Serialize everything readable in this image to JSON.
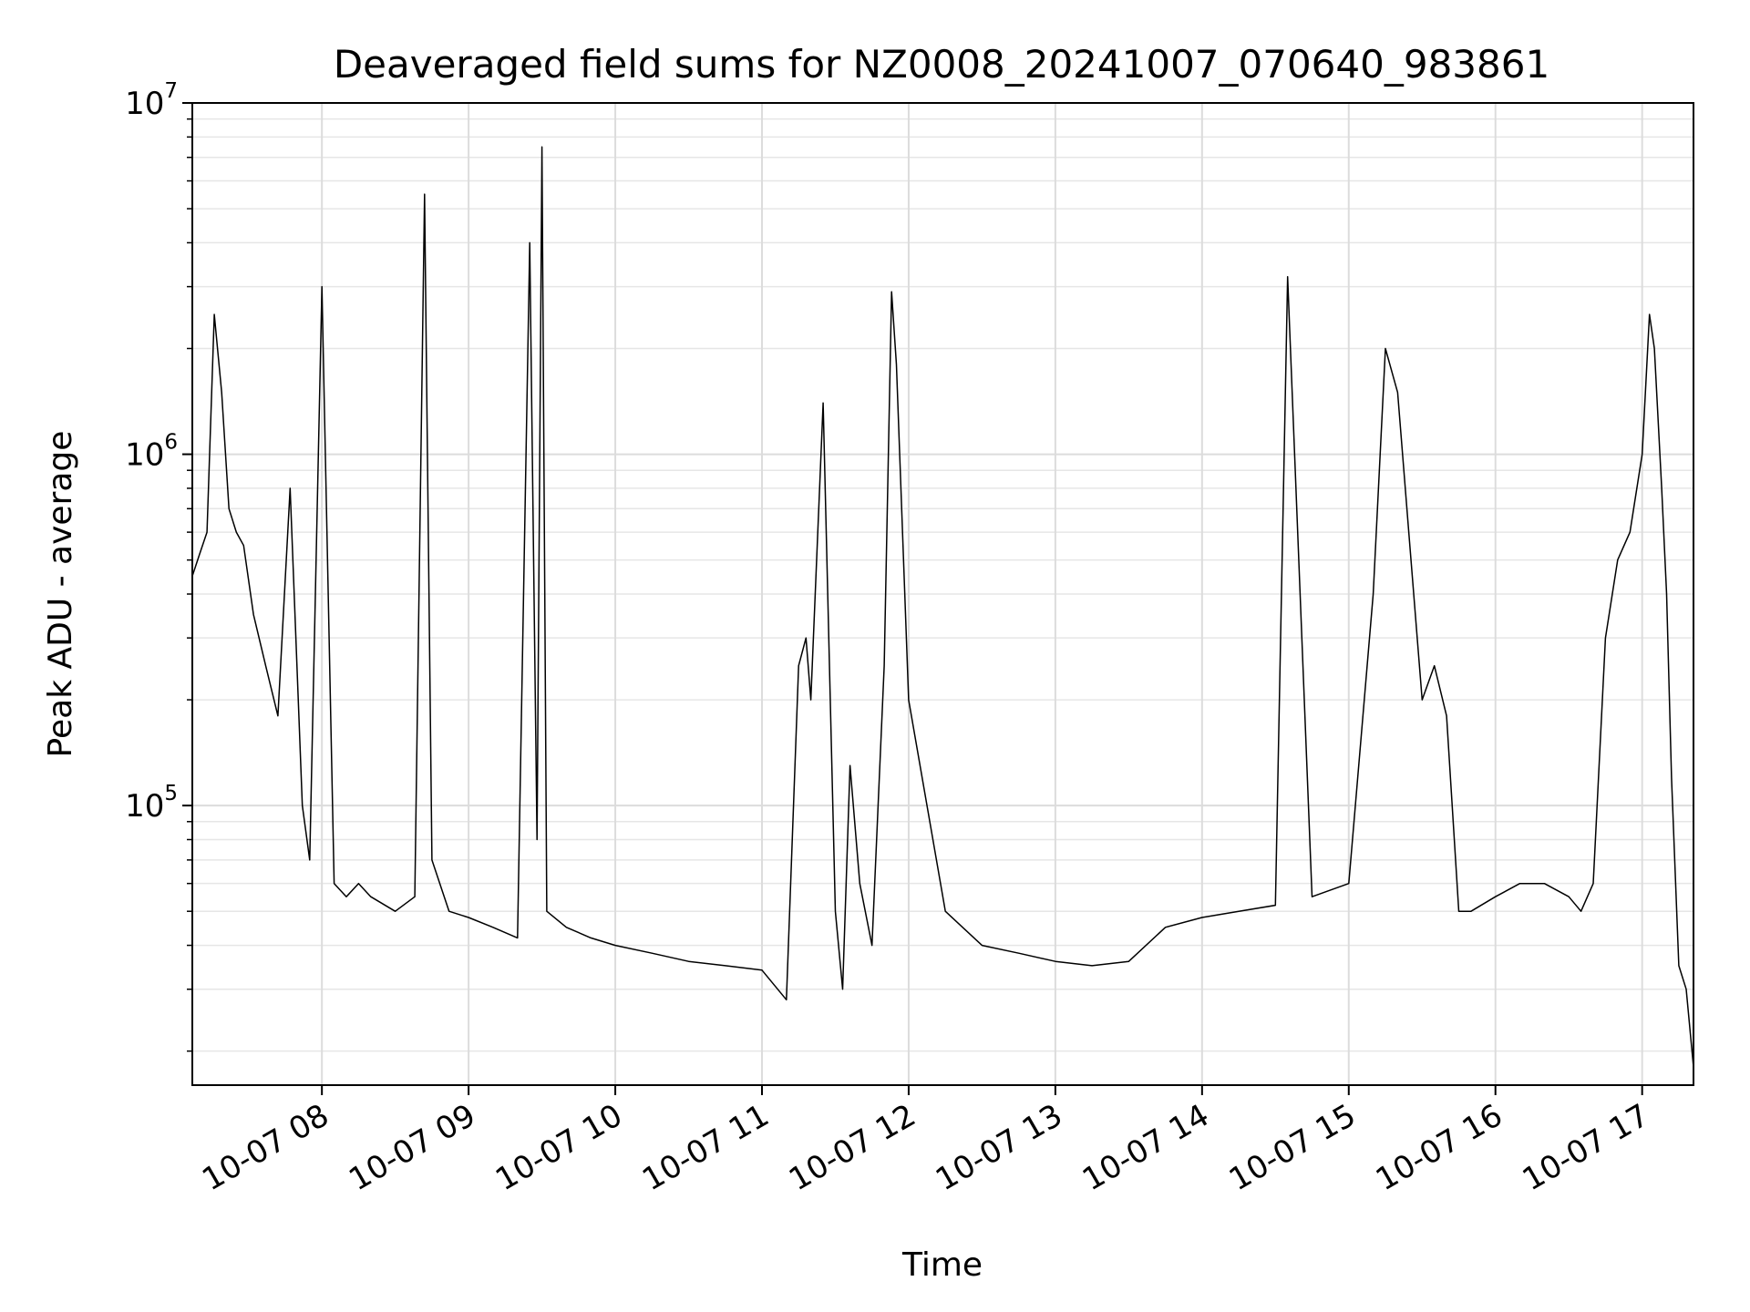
{
  "chart_data": {
    "type": "line",
    "title": "Deaveraged field sums for NZ0008_20241007_070640_983861",
    "xlabel": "Time",
    "ylabel": "Peak ADU - average",
    "x_type": "datetime",
    "xlim": [
      "2024-10-07T07:07:00",
      "2024-10-07T17:21:00"
    ],
    "ylim": [
      16000,
      10000000
    ],
    "yscale": "log",
    "grid": true,
    "line_color": "#000000",
    "x_ticks": [
      {
        "value": "2024-10-07T08:00:00",
        "label": "10-07 08"
      },
      {
        "value": "2024-10-07T09:00:00",
        "label": "10-07 09"
      },
      {
        "value": "2024-10-07T10:00:00",
        "label": "10-07 10"
      },
      {
        "value": "2024-10-07T11:00:00",
        "label": "10-07 11"
      },
      {
        "value": "2024-10-07T12:00:00",
        "label": "10-07 12"
      },
      {
        "value": "2024-10-07T13:00:00",
        "label": "10-07 13"
      },
      {
        "value": "2024-10-07T14:00:00",
        "label": "10-07 14"
      },
      {
        "value": "2024-10-07T15:00:00",
        "label": "10-07 15"
      },
      {
        "value": "2024-10-07T16:00:00",
        "label": "10-07 16"
      },
      {
        "value": "2024-10-07T17:00:00",
        "label": "10-07 17"
      }
    ],
    "y_ticks": [
      {
        "value": 100000,
        "base": "10",
        "exp": "5"
      },
      {
        "value": 1000000,
        "base": "10",
        "exp": "6"
      },
      {
        "value": 10000000,
        "base": "10",
        "exp": "7"
      }
    ],
    "series": [
      {
        "x": [
          "2024-10-07T07:07:00",
          "2024-10-07T07:10:00",
          "2024-10-07T07:13:00",
          "2024-10-07T07:16:00",
          "2024-10-07T07:19:00",
          "2024-10-07T07:22:00",
          "2024-10-07T07:25:00",
          "2024-10-07T07:28:00",
          "2024-10-07T07:32:00",
          "2024-10-07T07:37:00",
          "2024-10-07T07:42:00",
          "2024-10-07T07:47:00",
          "2024-10-07T07:52:00",
          "2024-10-07T07:55:00",
          "2024-10-07T08:00:00",
          "2024-10-07T08:05:00",
          "2024-10-07T08:10:00",
          "2024-10-07T08:15:00",
          "2024-10-07T08:20:00",
          "2024-10-07T08:30:00",
          "2024-10-07T08:38:00",
          "2024-10-07T08:42:00",
          "2024-10-07T08:45:00",
          "2024-10-07T08:52:00",
          "2024-10-07T09:00:00",
          "2024-10-07T09:10:00",
          "2024-10-07T09:20:00",
          "2024-10-07T09:25:00",
          "2024-10-07T09:28:00",
          "2024-10-07T09:30:00",
          "2024-10-07T09:32:00",
          "2024-10-07T09:40:00",
          "2024-10-07T09:50:00",
          "2024-10-07T10:00:00",
          "2024-10-07T10:15:00",
          "2024-10-07T10:30:00",
          "2024-10-07T10:45:00",
          "2024-10-07T11:00:00",
          "2024-10-07T11:10:00",
          "2024-10-07T11:15:00",
          "2024-10-07T11:18:00",
          "2024-10-07T11:20:00",
          "2024-10-07T11:25:00",
          "2024-10-07T11:30:00",
          "2024-10-07T11:33:00",
          "2024-10-07T11:36:00",
          "2024-10-07T11:40:00",
          "2024-10-07T11:45:00",
          "2024-10-07T11:50:00",
          "2024-10-07T11:53:00",
          "2024-10-07T11:55:00",
          "2024-10-07T12:00:00",
          "2024-10-07T12:15:00",
          "2024-10-07T12:30:00",
          "2024-10-07T12:45:00",
          "2024-10-07T13:00:00",
          "2024-10-07T13:15:00",
          "2024-10-07T13:30:00",
          "2024-10-07T13:45:00",
          "2024-10-07T14:00:00",
          "2024-10-07T14:15:00",
          "2024-10-07T14:30:00",
          "2024-10-07T14:35:00",
          "2024-10-07T14:45:00",
          "2024-10-07T15:00:00",
          "2024-10-07T15:10:00",
          "2024-10-07T15:15:00",
          "2024-10-07T15:20:00",
          "2024-10-07T15:30:00",
          "2024-10-07T15:35:00",
          "2024-10-07T15:40:00",
          "2024-10-07T15:45:00",
          "2024-10-07T15:50:00",
          "2024-10-07T16:00:00",
          "2024-10-07T16:10:00",
          "2024-10-07T16:20:00",
          "2024-10-07T16:30:00",
          "2024-10-07T16:35:00",
          "2024-10-07T16:40:00",
          "2024-10-07T16:45:00",
          "2024-10-07T16:50:00",
          "2024-10-07T16:55:00",
          "2024-10-07T17:00:00",
          "2024-10-07T17:03:00",
          "2024-10-07T17:05:00",
          "2024-10-07T17:08:00",
          "2024-10-07T17:10:00",
          "2024-10-07T17:12:00",
          "2024-10-07T17:15:00",
          "2024-10-07T17:18:00",
          "2024-10-07T17:21:00"
        ],
        "y": [
          450000,
          520000,
          600000,
          2500000,
          1500000,
          700000,
          600000,
          550000,
          350000,
          250000,
          180000,
          800000,
          100000,
          70000,
          3000000,
          60000,
          55000,
          60000,
          55000,
          50000,
          55000,
          5500000,
          70000,
          50000,
          48000,
          45000,
          42000,
          4000000,
          80000,
          7500000,
          50000,
          45000,
          42000,
          40000,
          38000,
          36000,
          35000,
          34000,
          28000,
          250000,
          300000,
          200000,
          1400000,
          50000,
          30000,
          130000,
          60000,
          40000,
          250000,
          2900000,
          1800000,
          200000,
          50000,
          40000,
          38000,
          36000,
          35000,
          36000,
          45000,
          48000,
          50000,
          52000,
          3200000,
          55000,
          60000,
          400000,
          2000000,
          1500000,
          200000,
          250000,
          180000,
          50000,
          50000,
          55000,
          60000,
          60000,
          55000,
          50000,
          60000,
          300000,
          500000,
          600000,
          1000000,
          2500000,
          2000000,
          800000,
          400000,
          120000,
          35000,
          30000,
          18000
        ]
      }
    ]
  }
}
